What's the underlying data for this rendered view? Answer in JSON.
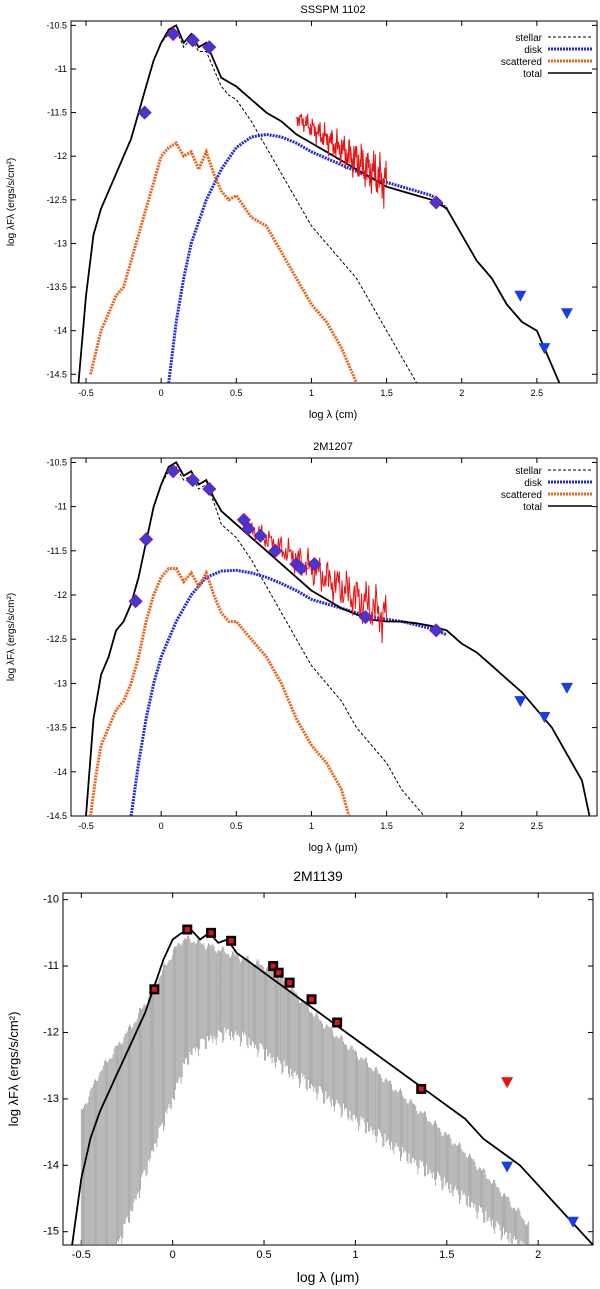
{
  "colors": {
    "stellar": "#000000",
    "disk": "#1f2bd6",
    "scattered": "#e8651c",
    "total": "#000000",
    "spectrum": "#e81212",
    "photometry_fill": "#3b3bd9",
    "photometry_edge": "#7a1fa8",
    "upper_limit": "#1a3fe0",
    "model_grey": "#8a8a8a",
    "phot3_fill": "#e81212",
    "phot3_edge": "#000000",
    "upper_limit_red": "#e81212"
  },
  "chart_data": [
    {
      "type": "line",
      "title": "SSSPM 1102",
      "xlabel": "log λ (cm)",
      "ylabel": "log λFλ (ergs/s/cm²)",
      "xlim": [
        -0.6,
        2.9
      ],
      "ylim": [
        -14.6,
        -10.45
      ],
      "xticks": [
        -0.5,
        0,
        0.5,
        1,
        1.5,
        2,
        2.5
      ],
      "xtick_labels": [
        "-0.5",
        "0",
        "0.5",
        "1",
        "1.5",
        "2",
        "2.5"
      ],
      "yticks": [
        -10.5,
        -11,
        -11.5,
        -12,
        -12.5,
        -13,
        -13.5,
        -14,
        -14.5
      ],
      "ytick_labels": [
        "-10.5",
        "-11",
        "-11.5",
        "-12",
        "-12.5",
        "-13",
        "-13.5",
        "-14",
        "-14.5"
      ],
      "legend": [
        "stellar",
        "disk",
        "scattered",
        "total"
      ],
      "legend_position": "top-right",
      "series": [
        {
          "name": "stellar",
          "style": "dashed",
          "x": [
            -0.55,
            -0.5,
            -0.45,
            -0.4,
            -0.35,
            -0.3,
            -0.25,
            -0.2,
            -0.15,
            -0.1,
            -0.05,
            0,
            0.05,
            0.1,
            0.15,
            0.2,
            0.25,
            0.3,
            0.35,
            0.4,
            0.45,
            0.5,
            0.6,
            0.7,
            0.8,
            0.9,
            1.0,
            1.1,
            1.2,
            1.3,
            1.4,
            1.5,
            1.6,
            1.7,
            1.75
          ],
          "y": [
            -14.6,
            -13.6,
            -12.9,
            -12.6,
            -12.4,
            -12.2,
            -12.0,
            -11.8,
            -11.5,
            -11.2,
            -10.9,
            -10.7,
            -10.6,
            -10.55,
            -10.75,
            -10.65,
            -10.8,
            -10.8,
            -11.0,
            -11.2,
            -11.3,
            -11.35,
            -11.6,
            -11.9,
            -12.2,
            -12.5,
            -12.8,
            -13.0,
            -13.2,
            -13.4,
            -13.7,
            -14.0,
            -14.3,
            -14.6,
            -14.6
          ]
        },
        {
          "name": "disk",
          "style": "dotted",
          "x": [
            0.05,
            0.1,
            0.15,
            0.2,
            0.3,
            0.4,
            0.5,
            0.6,
            0.7,
            0.8,
            0.9,
            1.0,
            1.2,
            1.4,
            1.6,
            1.8,
            1.9
          ],
          "y": [
            -14.6,
            -13.9,
            -13.4,
            -13.0,
            -12.5,
            -12.15,
            -11.9,
            -11.78,
            -11.75,
            -11.78,
            -11.85,
            -11.95,
            -12.1,
            -12.25,
            -12.35,
            -12.45,
            -12.6
          ]
        },
        {
          "name": "scattered",
          "style": "dotted",
          "x": [
            -0.47,
            -0.4,
            -0.35,
            -0.3,
            -0.25,
            -0.2,
            -0.15,
            -0.1,
            -0.05,
            0,
            0.05,
            0.1,
            0.15,
            0.2,
            0.25,
            0.3,
            0.35,
            0.4,
            0.45,
            0.5,
            0.6,
            0.7,
            0.8,
            0.9,
            1.0,
            1.1,
            1.2,
            1.3
          ],
          "y": [
            -14.5,
            -14.0,
            -13.8,
            -13.6,
            -13.5,
            -13.2,
            -12.9,
            -12.6,
            -12.3,
            -12.0,
            -11.9,
            -11.85,
            -12.0,
            -11.95,
            -12.15,
            -11.95,
            -12.2,
            -12.4,
            -12.5,
            -12.45,
            -12.7,
            -12.8,
            -13.1,
            -13.4,
            -13.7,
            -13.9,
            -14.2,
            -14.6
          ]
        },
        {
          "name": "total",
          "style": "solid",
          "x": [
            -0.55,
            -0.5,
            -0.45,
            -0.4,
            -0.35,
            -0.3,
            -0.25,
            -0.2,
            -0.15,
            -0.1,
            -0.05,
            0,
            0.05,
            0.1,
            0.15,
            0.2,
            0.25,
            0.3,
            0.35,
            0.4,
            0.45,
            0.5,
            0.6,
            0.7,
            0.8,
            0.9,
            1.0,
            1.1,
            1.2,
            1.3,
            1.4,
            1.5,
            1.6,
            1.7,
            1.8,
            1.9,
            2.0,
            2.1,
            2.2,
            2.3,
            2.4,
            2.5,
            2.55,
            2.6,
            2.65
          ],
          "y": [
            -14.6,
            -13.6,
            -12.9,
            -12.6,
            -12.4,
            -12.2,
            -12.0,
            -11.8,
            -11.5,
            -11.2,
            -10.9,
            -10.7,
            -10.55,
            -10.5,
            -10.7,
            -10.6,
            -10.75,
            -10.7,
            -10.9,
            -11.1,
            -11.15,
            -11.2,
            -11.35,
            -11.5,
            -11.6,
            -11.75,
            -11.85,
            -11.95,
            -12.05,
            -12.15,
            -12.25,
            -12.35,
            -12.4,
            -12.45,
            -12.5,
            -12.6,
            -12.9,
            -13.2,
            -13.4,
            -13.7,
            -13.9,
            -14.0,
            -14.2,
            -14.4,
            -14.6
          ]
        },
        {
          "name": "spectrum",
          "style": "noisy",
          "x": [
            0.9,
            1.5
          ],
          "y": [
            -11.55,
            -12.3
          ]
        }
      ],
      "photometry": {
        "x": [
          -0.11,
          0.08,
          0.21,
          0.32,
          1.83
        ],
        "y": [
          -11.5,
          -10.6,
          -10.67,
          -10.75,
          -12.53
        ]
      },
      "upper_limits": {
        "x": [
          2.39,
          2.55,
          2.7
        ],
        "y": [
          -13.6,
          -14.2,
          -13.8
        ]
      }
    },
    {
      "type": "line",
      "title": "2M1207",
      "xlabel": "log λ (μm)",
      "ylabel": "log λFλ (ergs/s/cm²)",
      "xlim": [
        -0.6,
        2.9
      ],
      "ylim": [
        -14.5,
        -10.45
      ],
      "xticks": [
        -0.5,
        0,
        0.5,
        1,
        1.5,
        2,
        2.5
      ],
      "xtick_labels": [
        "-0.5",
        "0",
        "0.5",
        "1",
        "1.5",
        "2",
        "2.5"
      ],
      "yticks": [
        -10.5,
        -11,
        -11.5,
        -12,
        -12.5,
        -13,
        -13.5,
        -14,
        -14.5
      ],
      "ytick_labels": [
        "-10.5",
        "-11",
        "-11.5",
        "-12",
        "-12.5",
        "-13",
        "-13.5",
        "-14",
        "-14.5"
      ],
      "legend": [
        "stellar",
        "disk",
        "scattered",
        "total"
      ],
      "legend_position": "top-right",
      "series": [
        {
          "name": "stellar",
          "style": "dashed",
          "x": [
            -0.5,
            -0.45,
            -0.4,
            -0.35,
            -0.3,
            -0.25,
            -0.2,
            -0.15,
            -0.1,
            -0.05,
            0,
            0.05,
            0.1,
            0.15,
            0.2,
            0.25,
            0.3,
            0.35,
            0.4,
            0.5,
            0.6,
            0.7,
            0.8,
            0.9,
            1.0,
            1.1,
            1.2,
            1.3,
            1.4,
            1.5,
            1.6,
            1.7,
            1.75
          ],
          "y": [
            -14.5,
            -13.4,
            -12.9,
            -12.7,
            -12.4,
            -12.3,
            -12.1,
            -11.8,
            -11.4,
            -11.0,
            -10.75,
            -10.6,
            -10.55,
            -10.7,
            -10.65,
            -10.8,
            -10.75,
            -10.95,
            -11.2,
            -11.35,
            -11.6,
            -11.9,
            -12.2,
            -12.5,
            -12.8,
            -13.0,
            -13.2,
            -13.5,
            -13.7,
            -13.9,
            -14.2,
            -14.4,
            -14.5
          ]
        },
        {
          "name": "disk",
          "style": "dotted",
          "x": [
            -0.2,
            -0.15,
            -0.1,
            -0.05,
            0,
            0.1,
            0.2,
            0.3,
            0.4,
            0.5,
            0.6,
            0.7,
            0.8,
            0.9,
            1.0,
            1.2,
            1.4,
            1.6,
            1.8,
            1.9
          ],
          "y": [
            -14.5,
            -13.9,
            -13.4,
            -13.0,
            -12.7,
            -12.3,
            -12.0,
            -11.8,
            -11.73,
            -11.72,
            -11.75,
            -11.8,
            -11.87,
            -11.95,
            -12.05,
            -12.15,
            -12.25,
            -12.3,
            -12.38,
            -12.45
          ]
        },
        {
          "name": "scattered",
          "style": "dotted",
          "x": [
            -0.47,
            -0.43,
            -0.4,
            -0.35,
            -0.3,
            -0.25,
            -0.2,
            -0.15,
            -0.1,
            -0.05,
            0,
            0.05,
            0.1,
            0.15,
            0.2,
            0.25,
            0.3,
            0.35,
            0.4,
            0.45,
            0.5,
            0.6,
            0.7,
            0.8,
            0.9,
            1.0,
            1.1,
            1.2,
            1.25
          ],
          "y": [
            -14.5,
            -14.0,
            -13.7,
            -13.5,
            -13.3,
            -13.2,
            -13.0,
            -12.7,
            -12.3,
            -12.0,
            -11.8,
            -11.7,
            -11.7,
            -11.85,
            -11.75,
            -11.9,
            -11.75,
            -12.0,
            -12.2,
            -12.3,
            -12.3,
            -12.5,
            -12.7,
            -13.0,
            -13.4,
            -13.7,
            -13.9,
            -14.2,
            -14.5
          ]
        },
        {
          "name": "total",
          "style": "solid",
          "x": [
            -0.5,
            -0.45,
            -0.4,
            -0.35,
            -0.3,
            -0.25,
            -0.2,
            -0.15,
            -0.1,
            -0.05,
            0,
            0.05,
            0.1,
            0.15,
            0.2,
            0.25,
            0.3,
            0.35,
            0.4,
            0.5,
            0.6,
            0.7,
            0.8,
            0.9,
            1.0,
            1.1,
            1.2,
            1.3,
            1.4,
            1.5,
            1.6,
            1.7,
            1.8,
            1.9,
            2.0,
            2.1,
            2.2,
            2.3,
            2.4,
            2.5,
            2.6,
            2.7,
            2.8,
            2.85
          ],
          "y": [
            -14.5,
            -13.4,
            -12.9,
            -12.7,
            -12.4,
            -12.3,
            -12.1,
            -11.8,
            -11.4,
            -11.0,
            -10.75,
            -10.55,
            -10.5,
            -10.65,
            -10.6,
            -10.75,
            -10.7,
            -10.9,
            -11.05,
            -11.2,
            -11.35,
            -11.5,
            -11.65,
            -11.8,
            -11.95,
            -12.05,
            -12.15,
            -12.22,
            -12.28,
            -12.3,
            -12.3,
            -12.32,
            -12.35,
            -12.4,
            -12.55,
            -12.65,
            -12.8,
            -12.95,
            -13.1,
            -13.3,
            -13.5,
            -13.8,
            -14.1,
            -14.5
          ]
        },
        {
          "name": "spectrum",
          "style": "noisy",
          "x": [
            0.55,
            1.5
          ],
          "y": [
            -11.2,
            -12.25
          ]
        }
      ],
      "photometry": {
        "x": [
          -0.17,
          -0.1,
          0.08,
          0.21,
          0.32,
          0.55,
          0.58,
          0.66,
          0.76,
          0.9,
          0.93,
          1.02,
          1.36,
          1.83
        ],
        "y": [
          -12.07,
          -11.37,
          -10.6,
          -10.7,
          -10.8,
          -11.15,
          -11.25,
          -11.33,
          -11.5,
          -11.65,
          -11.7,
          -11.65,
          -12.25,
          -12.4
        ]
      },
      "upper_limits": {
        "x": [
          2.39,
          2.55,
          2.7
        ],
        "y": [
          -13.2,
          -13.38,
          -13.05
        ]
      }
    },
    {
      "type": "line",
      "title": "2M1139",
      "xlabel": "log λ (μm)",
      "ylabel": "log λFλ (ergs/s/cm²)",
      "xlim": [
        -0.6,
        2.3
      ],
      "ylim": [
        -15.2,
        -9.9
      ],
      "xticks": [
        -0.5,
        0,
        0.5,
        1,
        1.5,
        2
      ],
      "xtick_labels": [
        "-0.5",
        "0",
        "0.5",
        "1",
        "1.5",
        "2"
      ],
      "yticks": [
        -10,
        -11,
        -12,
        -13,
        -14,
        -15
      ],
      "ytick_labels": [
        "-10",
        "-11",
        "-12",
        "-13",
        "-14",
        "-15"
      ],
      "series": [
        {
          "name": "model",
          "style": "grey-band",
          "x": [
            -0.5,
            -0.4,
            -0.3,
            -0.2,
            -0.1,
            0,
            0.05,
            0.1,
            0.2,
            0.3,
            0.4,
            0.5,
            0.6,
            0.7,
            0.8,
            1.0,
            1.2,
            1.4,
            1.6,
            1.8,
            1.95
          ],
          "y_upper": [
            -13.2,
            -12.6,
            -12.2,
            -11.8,
            -11.3,
            -10.8,
            -10.6,
            -10.6,
            -10.7,
            -10.8,
            -10.9,
            -11.0,
            -11.2,
            -11.5,
            -11.8,
            -12.3,
            -12.8,
            -13.3,
            -13.8,
            -14.4,
            -14.9
          ],
          "y_lower": [
            -15.2,
            -15.2,
            -15.1,
            -14.4,
            -13.6,
            -12.9,
            -12.5,
            -12.2,
            -12.0,
            -11.9,
            -12.0,
            -12.2,
            -12.4,
            -12.6,
            -12.8,
            -13.2,
            -13.6,
            -14.0,
            -14.4,
            -14.9,
            -15.2
          ]
        },
        {
          "name": "total",
          "style": "solid",
          "x": [
            -0.55,
            -0.5,
            -0.45,
            -0.4,
            -0.35,
            -0.3,
            -0.25,
            -0.2,
            -0.15,
            -0.1,
            -0.05,
            0,
            0.05,
            0.1,
            0.15,
            0.2,
            0.25,
            0.3,
            0.35,
            0.4,
            0.5,
            0.6,
            0.7,
            0.8,
            0.9,
            1.0,
            1.1,
            1.2,
            1.3,
            1.4,
            1.5,
            1.6,
            1.7,
            1.8,
            1.9,
            2.0,
            2.1,
            2.2,
            2.3
          ],
          "y": [
            -15.2,
            -14.2,
            -13.6,
            -13.2,
            -12.9,
            -12.6,
            -12.3,
            -12.0,
            -11.7,
            -11.3,
            -10.9,
            -10.6,
            -10.5,
            -10.45,
            -10.6,
            -10.5,
            -10.65,
            -10.6,
            -10.8,
            -10.9,
            -11.1,
            -11.3,
            -11.5,
            -11.7,
            -11.9,
            -12.1,
            -12.3,
            -12.5,
            -12.7,
            -12.9,
            -13.1,
            -13.3,
            -13.6,
            -13.8,
            -14.0,
            -14.3,
            -14.6,
            -14.9,
            -15.2
          ]
        }
      ],
      "photometry": {
        "x": [
          -0.1,
          0.08,
          0.21,
          0.32,
          0.55,
          0.58,
          0.64,
          0.76,
          0.9,
          1.36
        ],
        "y": [
          -11.35,
          -10.45,
          -10.5,
          -10.62,
          -11.0,
          -11.1,
          -11.25,
          -11.5,
          -11.85,
          -12.85
        ]
      },
      "upper_limits": {
        "x": [
          1.83,
          2.19
        ],
        "y": [
          -14.02,
          -14.85
        ]
      },
      "upper_limits_red": {
        "x": [
          1.83
        ],
        "y": [
          -12.75
        ]
      }
    }
  ]
}
